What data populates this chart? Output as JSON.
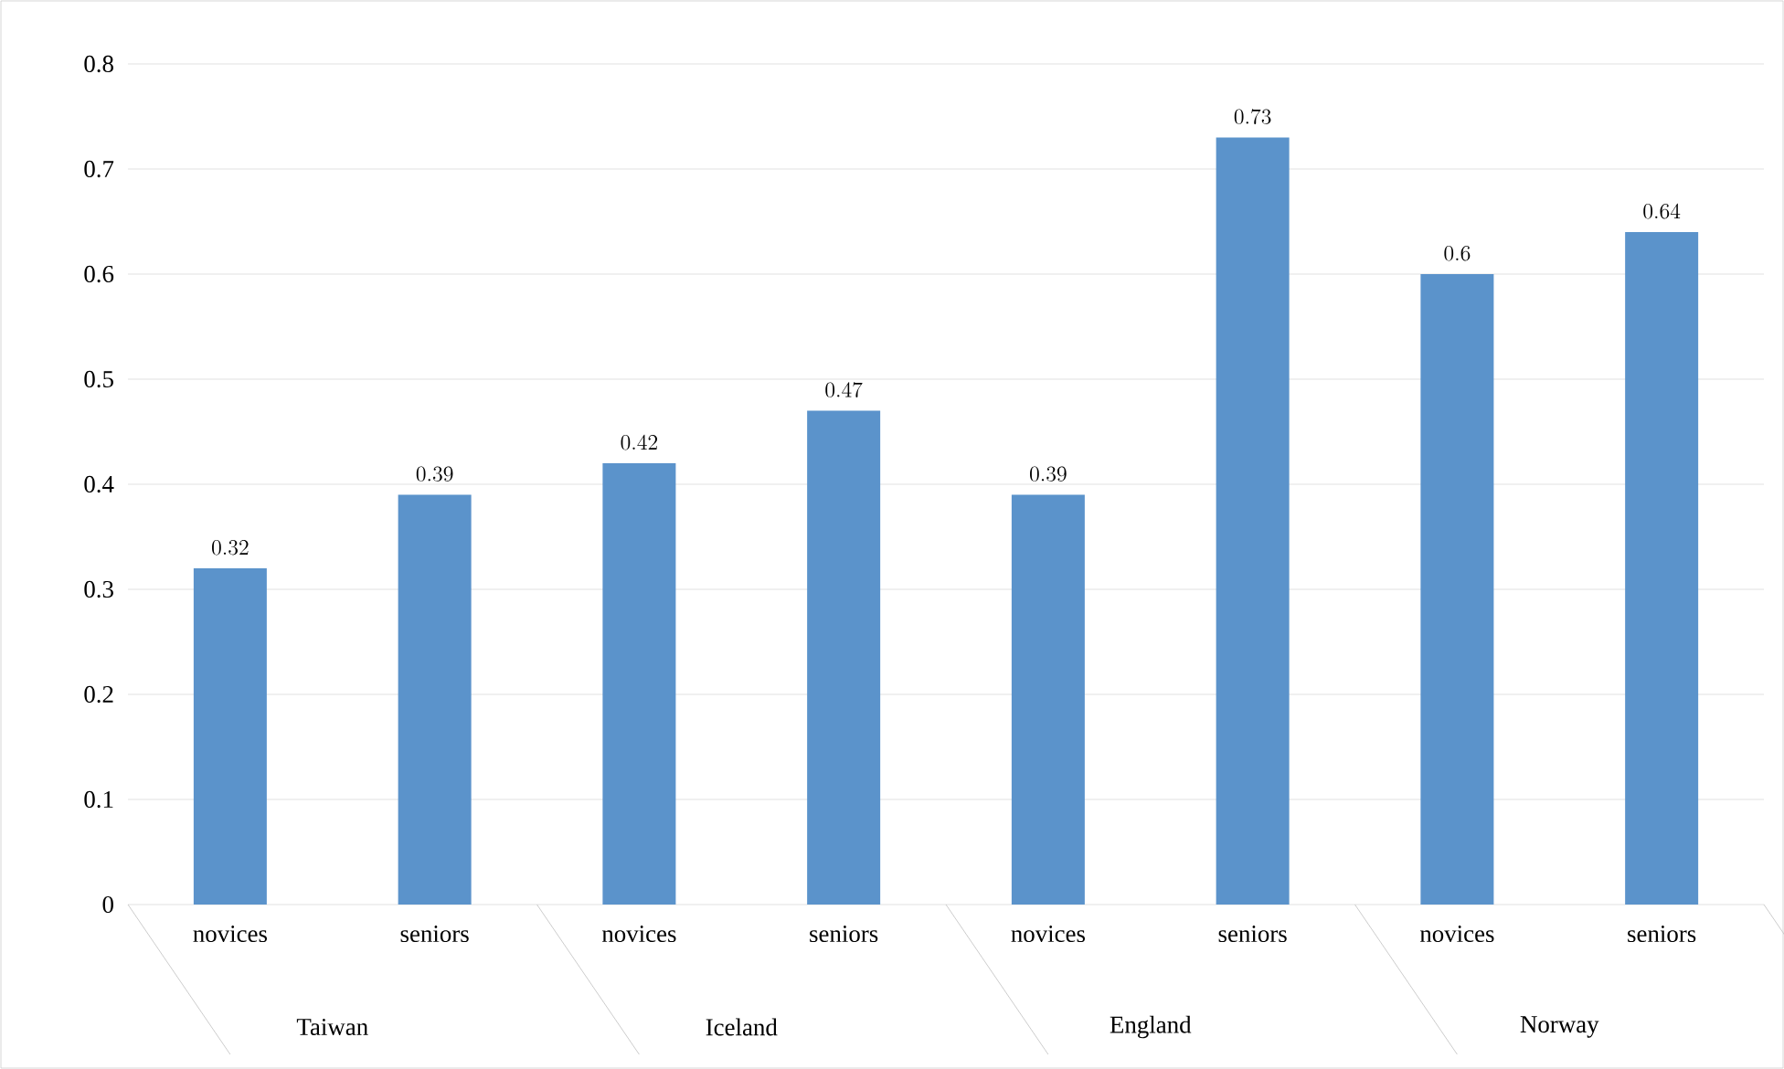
{
  "chart_data": {
    "type": "bar",
    "categories": [
      "novices",
      "seniors",
      "novices",
      "seniors",
      "novices",
      "seniors",
      "novices",
      "seniors"
    ],
    "values": [
      0.32,
      0.39,
      0.42,
      0.47,
      0.39,
      0.73,
      0.6,
      0.64
    ],
    "color": "#5b93cb",
    "ylim": [
      0,
      0.8
    ],
    "yticks": [
      0,
      0.1,
      0.2,
      0.3,
      0.4,
      0.5,
      0.6,
      0.7,
      0.8
    ],
    "grid": "y",
    "data_labels": true,
    "annotations": [
      "Taiwan",
      "Iceland",
      "England",
      "Norway"
    ]
  }
}
